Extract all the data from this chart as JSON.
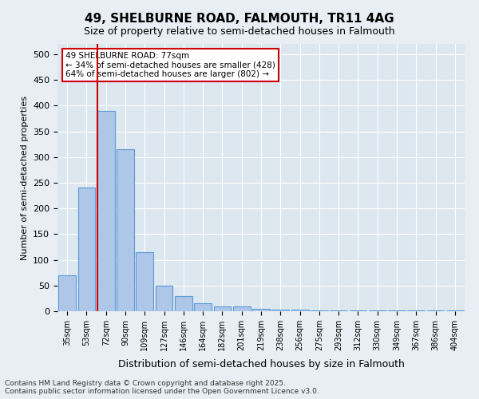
{
  "title1": "49, SHELBURNE ROAD, FALMOUTH, TR11 4AG",
  "title2": "Size of property relative to semi-detached houses in Falmouth",
  "xlabel": "Distribution of semi-detached houses by size in Falmouth",
  "ylabel": "Number of semi-detached properties",
  "bins": [
    "35sqm",
    "53sqm",
    "72sqm",
    "90sqm",
    "109sqm",
    "127sqm",
    "146sqm",
    "164sqm",
    "182sqm",
    "201sqm",
    "219sqm",
    "238sqm",
    "256sqm",
    "275sqm",
    "293sqm",
    "312sqm",
    "330sqm",
    "349sqm",
    "367sqm",
    "386sqm",
    "404sqm"
  ],
  "values": [
    70,
    240,
    390,
    315,
    115,
    50,
    30,
    15,
    10,
    10,
    5,
    3,
    3,
    2,
    1,
    1,
    1,
    1,
    1,
    1,
    1
  ],
  "bar_color": "#aec6e8",
  "bar_edge_color": "#5b9bd5",
  "annotation_text": "49 SHELBURNE ROAD: 77sqm\n← 34% of semi-detached houses are smaller (428)\n64% of semi-detached houses are larger (802) →",
  "annotation_box_color": "#ffffff",
  "annotation_box_edge_color": "#cc0000",
  "vline_color": "#cc0000",
  "footer_text": "Contains HM Land Registry data © Crown copyright and database right 2025.\nContains public sector information licensed under the Open Government Licence v3.0.",
  "ylim": [
    0,
    520
  ],
  "yticks": [
    0,
    50,
    100,
    150,
    200,
    250,
    300,
    350,
    400,
    450,
    500
  ],
  "bg_color": "#e8eef4",
  "plot_bg_color": "#dce7f0",
  "grid_color": "#ffffff",
  "vline_x_index": 1.55
}
